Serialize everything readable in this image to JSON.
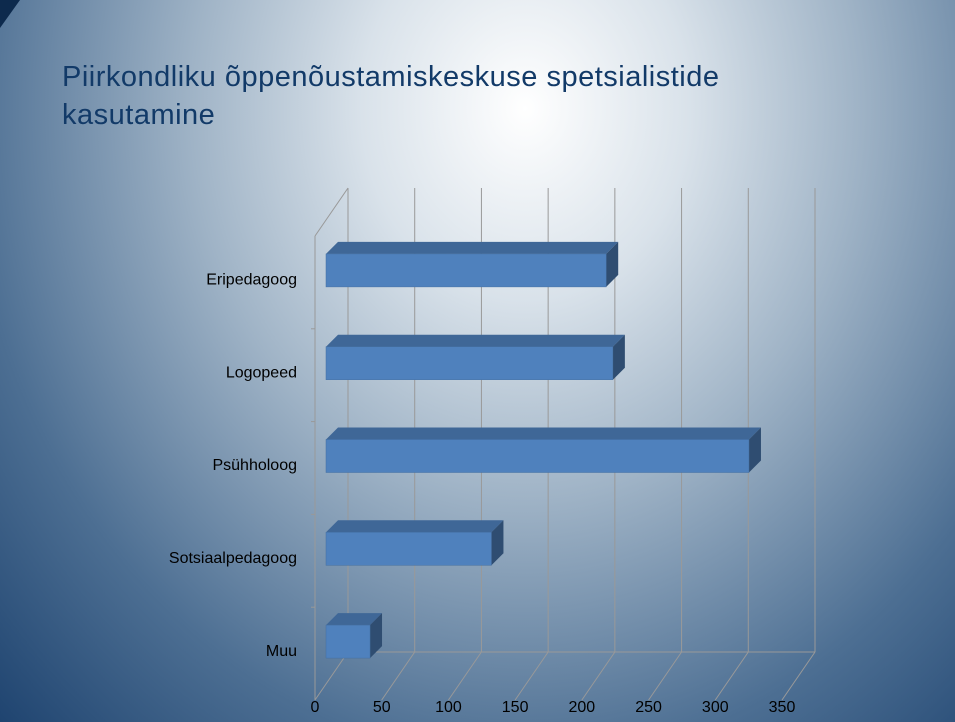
{
  "chart_data": {
    "type": "bar3d",
    "orientation": "horizontal",
    "title": "Piirkondliku õppenõustamiskeskuse spetsialistide kasutamine",
    "categories": [
      "Eripedagoog",
      "Logopeed",
      "Psühholoog",
      "Sotsiaalpedagoog",
      "Muu"
    ],
    "values": [
      210,
      215,
      317,
      124,
      33
    ],
    "color": "#4f81bd",
    "xlim": [
      0,
      350
    ],
    "xticks": [
      0,
      50,
      100,
      150,
      200,
      250,
      300,
      350
    ],
    "grid": true
  }
}
